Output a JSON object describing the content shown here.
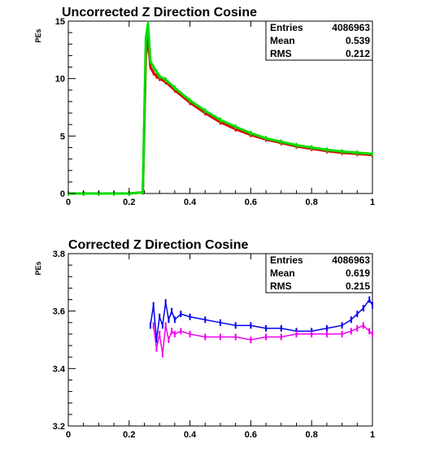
{
  "chart_data": [
    {
      "type": "line",
      "title": "Uncorrected Z Direction Cosine",
      "xlabel": "",
      "ylabel": "PEs",
      "xlim": [
        0,
        1
      ],
      "ylim": [
        0,
        15
      ],
      "xticks": [
        "0",
        "0.2",
        "0.4",
        "0.6",
        "0.8",
        "1"
      ],
      "yticks": [
        "0",
        "5",
        "10",
        "15"
      ],
      "stats": {
        "entries_label": "Entries",
        "entries": "4086963",
        "mean_label": "Mean",
        "mean": "0.539",
        "rms_label": "RMS",
        "rms": "0.212"
      },
      "series": [
        {
          "color": "#dd0000",
          "x": [
            0.0,
            0.05,
            0.1,
            0.15,
            0.2,
            0.245,
            0.255,
            0.262,
            0.27,
            0.28,
            0.29,
            0.3,
            0.32,
            0.35,
            0.4,
            0.45,
            0.5,
            0.55,
            0.6,
            0.65,
            0.7,
            0.75,
            0.8,
            0.85,
            0.9,
            0.95,
            1.0
          ],
          "y": [
            0,
            0,
            0,
            0,
            0,
            0.1,
            12.0,
            13.5,
            11.0,
            10.5,
            10.2,
            10.0,
            9.7,
            9.0,
            7.9,
            7.0,
            6.2,
            5.6,
            5.1,
            4.7,
            4.4,
            4.1,
            3.9,
            3.7,
            3.55,
            3.45,
            3.35
          ]
        },
        {
          "color": "#00dd00",
          "x": [
            0.0,
            0.05,
            0.1,
            0.15,
            0.2,
            0.245,
            0.255,
            0.262,
            0.27,
            0.28,
            0.29,
            0.3,
            0.32,
            0.35,
            0.4,
            0.45,
            0.5,
            0.55,
            0.6,
            0.65,
            0.7,
            0.75,
            0.8,
            0.85,
            0.9,
            0.95,
            1.0
          ],
          "y": [
            0,
            0,
            0,
            0,
            0,
            0.1,
            13.5,
            14.8,
            11.5,
            11.0,
            10.6,
            10.2,
            9.9,
            9.2,
            8.1,
            7.2,
            6.4,
            5.8,
            5.25,
            4.8,
            4.5,
            4.2,
            4.0,
            3.8,
            3.65,
            3.55,
            3.45
          ]
        }
      ]
    },
    {
      "type": "line",
      "title": "Corrected Z Direction Cosine",
      "xlabel": "",
      "ylabel": "PEs",
      "xlim": [
        0,
        1
      ],
      "ylim": [
        3.2,
        3.8
      ],
      "xticks": [
        "0",
        "0.2",
        "0.4",
        "0.6",
        "0.8",
        "1"
      ],
      "yticks": [
        "3.2",
        "3.4",
        "3.6",
        "3.8"
      ],
      "stats": {
        "entries_label": "Entries",
        "entries": "4086963",
        "mean_label": "Mean",
        "mean": "0.619",
        "rms_label": "RMS",
        "rms": "0.215"
      },
      "series": [
        {
          "color": "#0000ee",
          "x": [
            0.27,
            0.28,
            0.29,
            0.3,
            0.31,
            0.32,
            0.33,
            0.34,
            0.35,
            0.37,
            0.4,
            0.45,
            0.5,
            0.55,
            0.6,
            0.65,
            0.7,
            0.75,
            0.8,
            0.85,
            0.9,
            0.93,
            0.95,
            0.97,
            0.99,
            1.0
          ],
          "y": [
            3.55,
            3.62,
            3.5,
            3.58,
            3.55,
            3.63,
            3.57,
            3.6,
            3.57,
            3.59,
            3.58,
            3.57,
            3.56,
            3.55,
            3.55,
            3.54,
            3.54,
            3.53,
            3.53,
            3.54,
            3.55,
            3.57,
            3.59,
            3.61,
            3.64,
            3.62
          ]
        },
        {
          "color": "#ee00ee",
          "x": [
            0.28,
            0.29,
            0.3,
            0.31,
            0.32,
            0.33,
            0.34,
            0.35,
            0.37,
            0.4,
            0.45,
            0.5,
            0.55,
            0.6,
            0.65,
            0.7,
            0.75,
            0.8,
            0.85,
            0.9,
            0.93,
            0.95,
            0.97,
            0.99,
            1.0
          ],
          "y": [
            3.55,
            3.47,
            3.52,
            3.45,
            3.55,
            3.5,
            3.53,
            3.52,
            3.53,
            3.52,
            3.51,
            3.51,
            3.51,
            3.5,
            3.51,
            3.51,
            3.52,
            3.52,
            3.52,
            3.52,
            3.53,
            3.54,
            3.55,
            3.53,
            3.52
          ]
        }
      ]
    }
  ]
}
